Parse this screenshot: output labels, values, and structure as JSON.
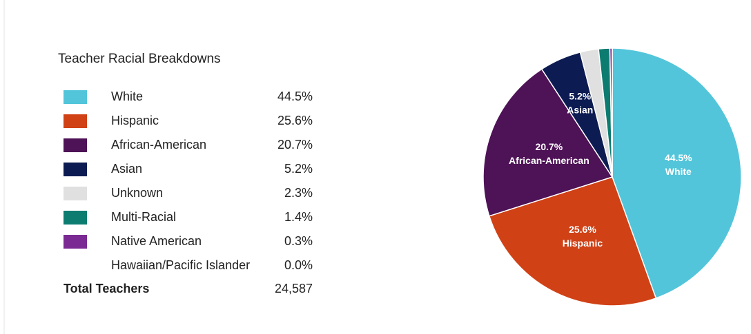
{
  "chart_data": {
    "type": "pie",
    "title": "Teacher Racial Breakdowns",
    "categories": [
      "White",
      "Hispanic",
      "African-American",
      "Asian",
      "Unknown",
      "Multi-Racial",
      "Native American",
      "Hawaiian/Pacific Islander"
    ],
    "values": [
      44.5,
      25.6,
      20.7,
      5.2,
      2.3,
      1.4,
      0.3,
      0.0
    ],
    "value_labels": [
      "44.5%",
      "25.6%",
      "20.7%",
      "5.2%",
      "2.3%",
      "1.4%",
      "0.3%",
      "0.0%"
    ],
    "colors": [
      "#52c5da",
      "#d04116",
      "#4e1256",
      "#0c1b52",
      "#e0e0e0",
      "#0c7b70",
      "#7b2a93",
      null
    ],
    "total_label": "Total Teachers",
    "total": {
      "value": 24587,
      "label": "24,587"
    }
  }
}
